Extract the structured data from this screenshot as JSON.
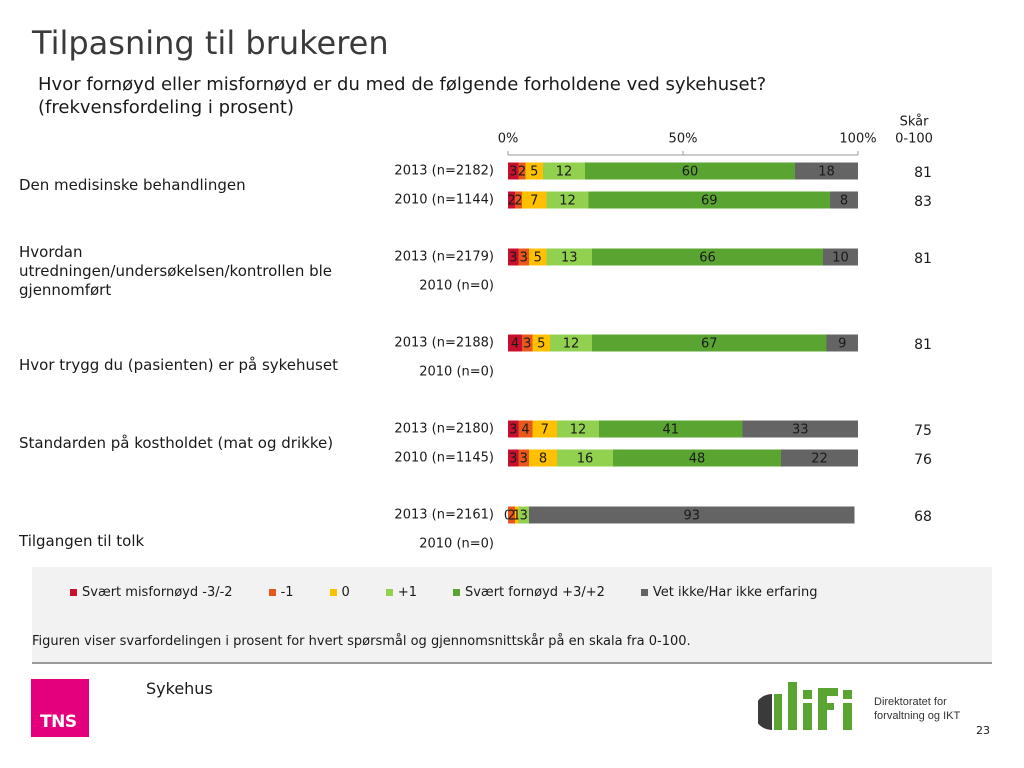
{
  "slide": {
    "title": "Tilpasning til brukeren",
    "question": "Hvor fornøyd eller misfornøyd er du med de følgende forholdene ved sykehuset? (frekvensfordeling i prosent)"
  },
  "chart_data": {
    "type": "bar",
    "orientation": "horizontal",
    "stacked": true,
    "xlim": [
      0,
      100
    ],
    "x_ticks": [
      "0%",
      "50%",
      "100%"
    ],
    "score_header": [
      "Skår",
      "0-100"
    ],
    "colors": [
      "#c8102e",
      "#e8581c",
      "#ffc000",
      "#92d050",
      "#5aa532",
      "#646464"
    ],
    "legend_placement": "bottom",
    "series": [
      {
        "name": "Svært misfornøyd -3/-2"
      },
      {
        "name": "-1"
      },
      {
        "name": "0"
      },
      {
        "name": "+1"
      },
      {
        "name": "Svært fornøyd +3/+2"
      },
      {
        "name": "Vet ikke/Har ikke erfaring"
      }
    ],
    "questions": [
      {
        "label": [
          "Den medisinske behandlingen"
        ],
        "rows": [
          {
            "label": "2013 (n=2182)",
            "values": [
              3,
              2,
              5,
              12,
              60,
              18
            ],
            "score": "81"
          },
          {
            "label": "2010 (n=1144)",
            "values": [
              2,
              2,
              7,
              12,
              69,
              8
            ],
            "score": "83"
          }
        ]
      },
      {
        "label": [
          "Hvordan",
          "utredningen/undersøkelsen/kontrollen ble",
          "gjennomført"
        ],
        "rows": [
          {
            "label": "2013 (n=2179)",
            "values": [
              3,
              3,
              5,
              13,
              66,
              10
            ],
            "score": "81"
          },
          {
            "label": "2010 (n=0)",
            "values": null,
            "score": ""
          }
        ]
      },
      {
        "label": [
          "Hvor trygg du (pasienten) er på sykehuset"
        ],
        "rows": [
          {
            "label": "2013 (n=2188)",
            "values": [
              4,
              3,
              5,
              12,
              67,
              9
            ],
            "score": "81"
          },
          {
            "label": "2010 (n=0)",
            "values": null,
            "score": ""
          }
        ]
      },
      {
        "label": [
          "Standarden på kostholdet (mat og drikke)"
        ],
        "rows": [
          {
            "label": "2013 (n=2180)",
            "values": [
              3,
              4,
              7,
              12,
              41,
              33
            ],
            "score": "75"
          },
          {
            "label": "2010 (n=1145)",
            "values": [
              3,
              3,
              8,
              16,
              48,
              22
            ],
            "score": "76"
          }
        ]
      },
      {
        "label": [
          "Tilgangen til tolk"
        ],
        "rows": [
          {
            "label": "2013 (n=2161)",
            "values": [
              0,
              2,
              1,
              3,
              0,
              93
            ],
            "score": "68"
          },
          {
            "label": "2010 (n=0)",
            "values": null,
            "score": ""
          }
        ]
      }
    ]
  },
  "footnote": "Figuren viser svarfordelingen i prosent for hvert spørsmål og gjennomsnittskår på en skala fra 0-100.",
  "footer": {
    "label": "Sykehus",
    "tns_logo_text": "TNS",
    "difi_logo_text": "difi",
    "difi_tagline": [
      "Direktoratet for",
      "forvaltning og IKT"
    ],
    "page_number": "23"
  }
}
